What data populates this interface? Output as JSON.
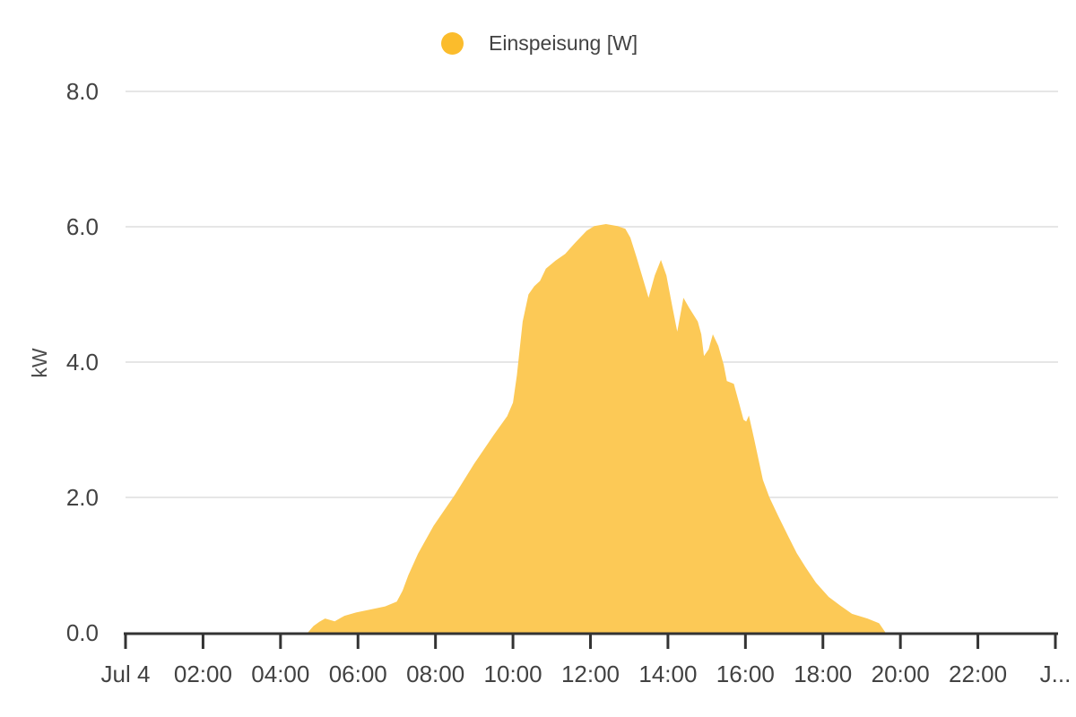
{
  "legend": {
    "label": "Einspeisung [W]"
  },
  "y_axis": {
    "title": "kW",
    "ticks": [
      "8.0",
      "6.0",
      "4.0",
      "2.0",
      "0.0"
    ],
    "tick_values": [
      8,
      6,
      4,
      2,
      0
    ]
  },
  "x_axis": {
    "labels": [
      "Jul 4",
      "02:00",
      "04:00",
      "06:00",
      "08:00",
      "10:00",
      "12:00",
      "14:00",
      "16:00",
      "18:00",
      "20:00",
      "22:00",
      "J..."
    ],
    "tick_hours": [
      0,
      2,
      4,
      6,
      8,
      10,
      12,
      14,
      16,
      18,
      20,
      22,
      24
    ]
  },
  "chart_data": {
    "type": "area",
    "title": "",
    "xlabel": "",
    "ylabel": "kW",
    "x_unit": "time of day (hours), Jul 4",
    "x_range_hours": [
      0,
      24
    ],
    "ylim": [
      0,
      8
    ],
    "grid": true,
    "legend_position": "top",
    "series": [
      {
        "name": "Einspeisung [W]",
        "points": [
          [
            4.7,
            0.0
          ],
          [
            4.85,
            0.1
          ],
          [
            5.0,
            0.16
          ],
          [
            5.15,
            0.21
          ],
          [
            5.4,
            0.17
          ],
          [
            5.65,
            0.25
          ],
          [
            5.95,
            0.3
          ],
          [
            6.3,
            0.34
          ],
          [
            6.7,
            0.39
          ],
          [
            7.0,
            0.46
          ],
          [
            7.15,
            0.62
          ],
          [
            7.3,
            0.85
          ],
          [
            7.55,
            1.17
          ],
          [
            7.95,
            1.58
          ],
          [
            8.5,
            2.04
          ],
          [
            9.0,
            2.5
          ],
          [
            9.5,
            2.92
          ],
          [
            9.85,
            3.2
          ],
          [
            10.0,
            3.4
          ],
          [
            10.1,
            3.8
          ],
          [
            10.25,
            4.6
          ],
          [
            10.4,
            5.0
          ],
          [
            10.55,
            5.12
          ],
          [
            10.7,
            5.2
          ],
          [
            10.85,
            5.38
          ],
          [
            11.1,
            5.5
          ],
          [
            11.35,
            5.6
          ],
          [
            11.6,
            5.76
          ],
          [
            11.9,
            5.94
          ],
          [
            12.1,
            6.01
          ],
          [
            12.4,
            6.04
          ],
          [
            12.7,
            6.01
          ],
          [
            12.9,
            5.97
          ],
          [
            13.03,
            5.84
          ],
          [
            13.19,
            5.55
          ],
          [
            13.36,
            5.22
          ],
          [
            13.5,
            4.95
          ],
          [
            13.66,
            5.28
          ],
          [
            13.82,
            5.51
          ],
          [
            13.96,
            5.28
          ],
          [
            14.12,
            4.8
          ],
          [
            14.24,
            4.45
          ],
          [
            14.4,
            4.95
          ],
          [
            14.55,
            4.8
          ],
          [
            14.77,
            4.6
          ],
          [
            14.86,
            4.41
          ],
          [
            14.93,
            4.09
          ],
          [
            15.05,
            4.19
          ],
          [
            15.16,
            4.41
          ],
          [
            15.3,
            4.24
          ],
          [
            15.44,
            3.96
          ],
          [
            15.52,
            3.72
          ],
          [
            15.7,
            3.68
          ],
          [
            15.81,
            3.45
          ],
          [
            15.95,
            3.15
          ],
          [
            16.02,
            3.12
          ],
          [
            16.09,
            3.21
          ],
          [
            16.22,
            2.88
          ],
          [
            16.45,
            2.26
          ],
          [
            16.62,
            2.0
          ],
          [
            16.85,
            1.72
          ],
          [
            17.1,
            1.43
          ],
          [
            17.32,
            1.18
          ],
          [
            17.55,
            0.97
          ],
          [
            17.82,
            0.74
          ],
          [
            18.15,
            0.53
          ],
          [
            18.45,
            0.4
          ],
          [
            18.75,
            0.28
          ],
          [
            19.15,
            0.21
          ],
          [
            19.45,
            0.14
          ],
          [
            19.62,
            0.0
          ]
        ]
      }
    ],
    "colors": {
      "series": "#FBBC2C",
      "area_fill": "#FCC956",
      "gridline": "#E6E6E6",
      "axis": "#333333",
      "text": "#424242"
    }
  }
}
